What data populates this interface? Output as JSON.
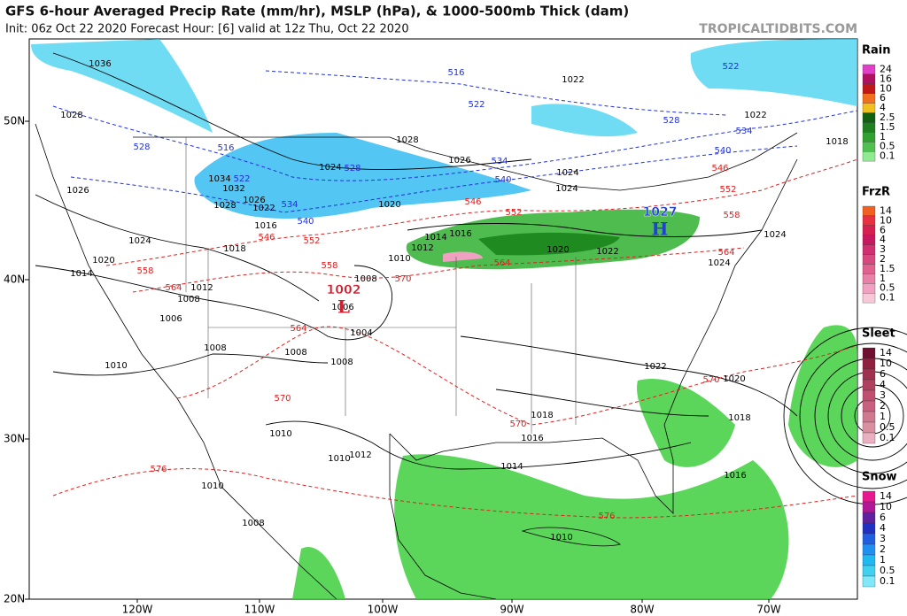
{
  "header": {
    "title": "GFS 6-hour Averaged Precip Rate (mm/hr), MSLP (hPa), & 1000-500mb Thick (dam)",
    "subtitle": "Init: 06z Oct 22 2020   Forecast Hour: [6]   valid at 12z Thu, Oct 22 2020",
    "watermark": "TROPICALTIDBITS.COM"
  },
  "latitude_labels": [
    "50N",
    "40N",
    "30N",
    "20N"
  ],
  "longitude_labels": [
    "120W",
    "110W",
    "100W",
    "90W",
    "80W",
    "70W"
  ],
  "pressure_centers": [
    {
      "letter": "L",
      "value": "1002"
    },
    {
      "letter": "H",
      "value": "1027"
    }
  ],
  "isobar_labels": [
    "1036",
    "1028",
    "1026",
    "1024",
    "1020",
    "1014",
    "1012",
    "1008",
    "1006",
    "1010",
    "1008",
    "1008",
    "1008",
    "1004",
    "1006",
    "1008",
    "1010",
    "1012",
    "1014",
    "1016",
    "1020",
    "1024",
    "1028",
    "1026",
    "1024",
    "1024",
    "1020",
    "1022",
    "1024",
    "1024",
    "1022",
    "1020",
    "1018",
    "1018",
    "1016",
    "1014",
    "1016",
    "1010",
    "1010",
    "1012",
    "1010",
    "1008",
    "1010",
    "1022",
    "1022",
    "1018",
    "1034",
    "1032",
    "1028",
    "1026",
    "1022",
    "1016",
    "1018"
  ],
  "thickness_labels_warm": [
    "546",
    "552",
    "558",
    "564",
    "558",
    "570",
    "564",
    "570",
    "576",
    "570",
    "576",
    "570",
    "564",
    "558",
    "552",
    "546",
    "546",
    "552",
    "564"
  ],
  "thickness_labels_cold": [
    "516",
    "522",
    "528",
    "534",
    "540",
    "534",
    "540",
    "516",
    "528",
    "522",
    "528",
    "534",
    "540",
    "522"
  ],
  "legends": [
    {
      "title": "Rain",
      "levels": [
        "24",
        "16",
        "10",
        "6",
        "4",
        "2.5",
        "1.5",
        "1",
        "0.5",
        "0.1"
      ],
      "colors": [
        "#e040c8",
        "#b01060",
        "#c01818",
        "#f07020",
        "#f0c020",
        "#106010",
        "#208020",
        "#30a030",
        "#50c050",
        "#90ea90"
      ]
    },
    {
      "title": "FrzR",
      "levels": [
        "14",
        "10",
        "6",
        "4",
        "3",
        "2",
        "1.5",
        "1",
        "0.5",
        "0.1"
      ],
      "colors": [
        "#f06020",
        "#e83040",
        "#d82050",
        "#c81860",
        "#d03070",
        "#d84880",
        "#e06090",
        "#e880a8",
        "#f0a0c0",
        "#f8c8d8"
      ]
    },
    {
      "title": "Sleet",
      "levels": [
        "14",
        "10",
        "6",
        "4",
        "3",
        "2",
        "1",
        "0.5",
        "0.1"
      ],
      "colors": [
        "#701030",
        "#902040",
        "#a03050",
        "#b04060",
        "#c05070",
        "#c86080",
        "#d07890",
        "#d890a0",
        "#e8b0c0"
      ]
    },
    {
      "title": "Snow",
      "levels": [
        "14",
        "10",
        "6",
        "4",
        "3",
        "2",
        "1",
        "0.5",
        "0.1"
      ],
      "colors": [
        "#e81890",
        "#b01898",
        "#6020a0",
        "#2030c0",
        "#2060e0",
        "#2090f0",
        "#20b8f0",
        "#40d0f0",
        "#80e8f8"
      ]
    }
  ]
}
